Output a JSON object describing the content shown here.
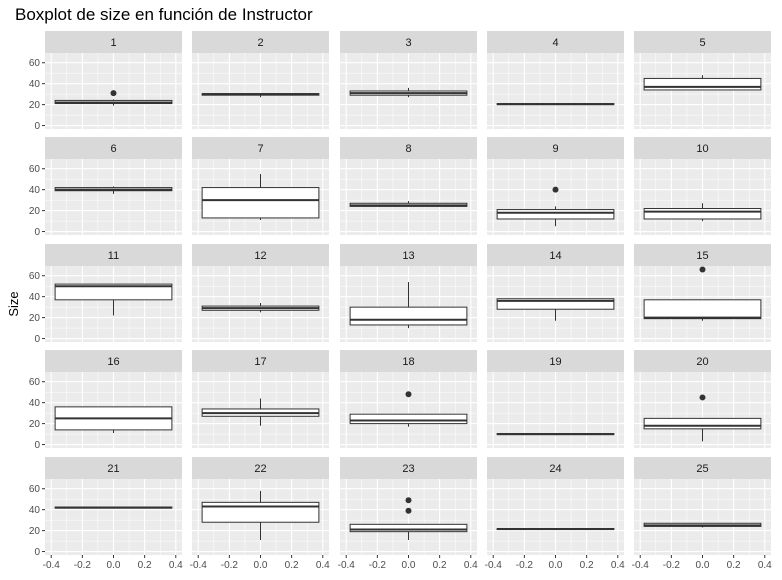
{
  "chart_data": {
    "type": "boxplot",
    "title": "Boxplot de size en función de Instructor",
    "xlabel": "",
    "ylabel": "Size",
    "xlim": [
      -0.4,
      0.4
    ],
    "ylim": [
      0,
      60
    ],
    "x_ticks": [
      "-0.4",
      "-0.2",
      "0.0",
      "0.2",
      "0.4"
    ],
    "y_ticks": [
      "0",
      "20",
      "40",
      "60"
    ],
    "facet_layout": {
      "rows": 5,
      "cols": 5
    },
    "colors": {
      "panel_bg": "#ebebeb",
      "strip_bg": "#d9d9d9",
      "grid": "#ffffff",
      "box_fill": "#ffffff",
      "line": "#333333"
    },
    "panels": [
      {
        "label": "1",
        "min": 19,
        "q1": 21,
        "median": 22,
        "q3": 24,
        "max": 25,
        "outliers": [
          31
        ]
      },
      {
        "label": "2",
        "min": 27,
        "q1": 29,
        "median": 30,
        "q3": 30.5,
        "max": 31,
        "outliers": []
      },
      {
        "label": "3",
        "min": 27,
        "q1": 29,
        "median": 31,
        "q3": 33,
        "max": 36,
        "outliers": []
      },
      {
        "label": "4",
        "min": 20,
        "q1": 20,
        "median": 20.5,
        "q3": 21,
        "max": 21,
        "outliers": []
      },
      {
        "label": "5",
        "min": 34,
        "q1": 34,
        "median": 37,
        "q3": 45,
        "max": 48,
        "outliers": []
      },
      {
        "label": "6",
        "min": 36,
        "q1": 39,
        "median": 40,
        "q3": 42,
        "max": 43,
        "outliers": []
      },
      {
        "label": "7",
        "min": 11,
        "q1": 13,
        "median": 30,
        "q3": 42,
        "max": 55,
        "outliers": []
      },
      {
        "label": "8",
        "min": 24,
        "q1": 24,
        "median": 25,
        "q3": 27,
        "max": 29,
        "outliers": []
      },
      {
        "label": "9",
        "min": 5,
        "q1": 12,
        "median": 18,
        "q3": 21,
        "max": 24,
        "outliers": [
          40
        ]
      },
      {
        "label": "10",
        "min": 10,
        "q1": 12,
        "median": 19,
        "q3": 22,
        "max": 27,
        "outliers": []
      },
      {
        "label": "11",
        "min": 22,
        "q1": 37,
        "median": 50,
        "q3": 52,
        "max": 52,
        "outliers": []
      },
      {
        "label": "12",
        "min": 25,
        "q1": 27,
        "median": 29,
        "q3": 31,
        "max": 34,
        "outliers": []
      },
      {
        "label": "13",
        "min": 10,
        "q1": 13,
        "median": 18,
        "q3": 30,
        "max": 54,
        "outliers": []
      },
      {
        "label": "14",
        "min": 17,
        "q1": 28,
        "median": 36,
        "q3": 38,
        "max": 38,
        "outliers": []
      },
      {
        "label": "15",
        "min": 17,
        "q1": 19,
        "median": 20,
        "q3": 37,
        "max": 37,
        "outliers": [
          66
        ]
      },
      {
        "label": "16",
        "min": 11,
        "q1": 14,
        "median": 25,
        "q3": 36,
        "max": 36,
        "outliers": []
      },
      {
        "label": "17",
        "min": 18,
        "q1": 27,
        "median": 30,
        "q3": 34,
        "max": 44,
        "outliers": []
      },
      {
        "label": "18",
        "min": 17,
        "q1": 20,
        "median": 23,
        "q3": 29,
        "max": 29,
        "outliers": [
          48
        ]
      },
      {
        "label": "19",
        "min": 9,
        "q1": 9.5,
        "median": 10,
        "q3": 10.5,
        "max": 11,
        "outliers": []
      },
      {
        "label": "20",
        "min": 3,
        "q1": 15,
        "median": 18,
        "q3": 25,
        "max": 25,
        "outliers": [
          45
        ]
      },
      {
        "label": "21",
        "min": 41,
        "q1": 41.5,
        "median": 42,
        "q3": 42.5,
        "max": 43,
        "outliers": []
      },
      {
        "label": "22",
        "min": 11,
        "q1": 28,
        "median": 43,
        "q3": 47,
        "max": 58,
        "outliers": []
      },
      {
        "label": "23",
        "min": 11,
        "q1": 19,
        "median": 21,
        "q3": 26,
        "max": 26,
        "outliers": [
          39,
          49
        ]
      },
      {
        "label": "24",
        "min": 21,
        "q1": 21,
        "median": 21.5,
        "q3": 22,
        "max": 22,
        "outliers": []
      },
      {
        "label": "25",
        "min": 23,
        "q1": 24,
        "median": 25,
        "q3": 27,
        "max": 27,
        "outliers": []
      }
    ]
  }
}
